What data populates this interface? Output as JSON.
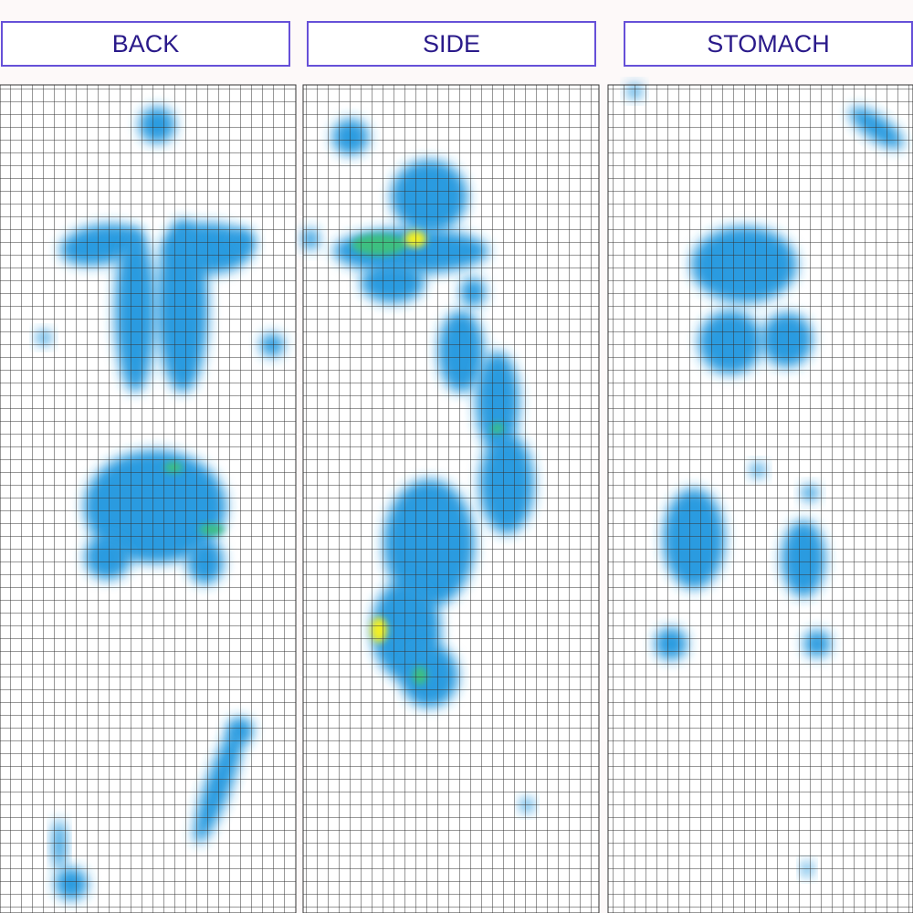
{
  "tabs": [
    {
      "label": "BACK"
    },
    {
      "label": "SIDE"
    },
    {
      "label": "STOMACH"
    }
  ],
  "colors": {
    "tab_border": "#6650d8",
    "tab_text": "#2a1a8a",
    "grid_line": "#333333",
    "pressure_low": "#2a9be0",
    "pressure_mid": "#3cc080",
    "pressure_high": "#f4f020"
  }
}
